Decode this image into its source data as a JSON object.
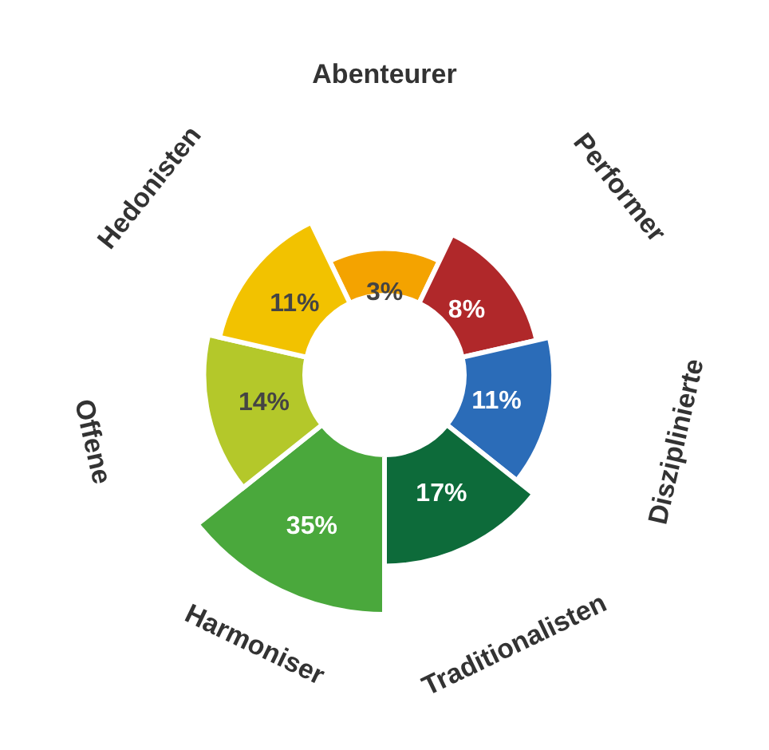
{
  "chart_data": {
    "type": "other",
    "categories": [
      "Abenteurer",
      "Performer",
      "Disziplinierte",
      "Traditionalisten",
      "Harmoniser",
      "Offene",
      "Hedonisten"
    ],
    "values": [
      3,
      8,
      11,
      17,
      35,
      14,
      11
    ],
    "value_labels": [
      "3%",
      "8%",
      "11%",
      "17%",
      "35%",
      "14%",
      "11%"
    ],
    "colors": [
      "#f4a300",
      "#b0282a",
      "#2b6cb8",
      "#0d6b3a",
      "#4aa83c",
      "#b4c82a",
      "#f2c200"
    ],
    "legend": false
  }
}
